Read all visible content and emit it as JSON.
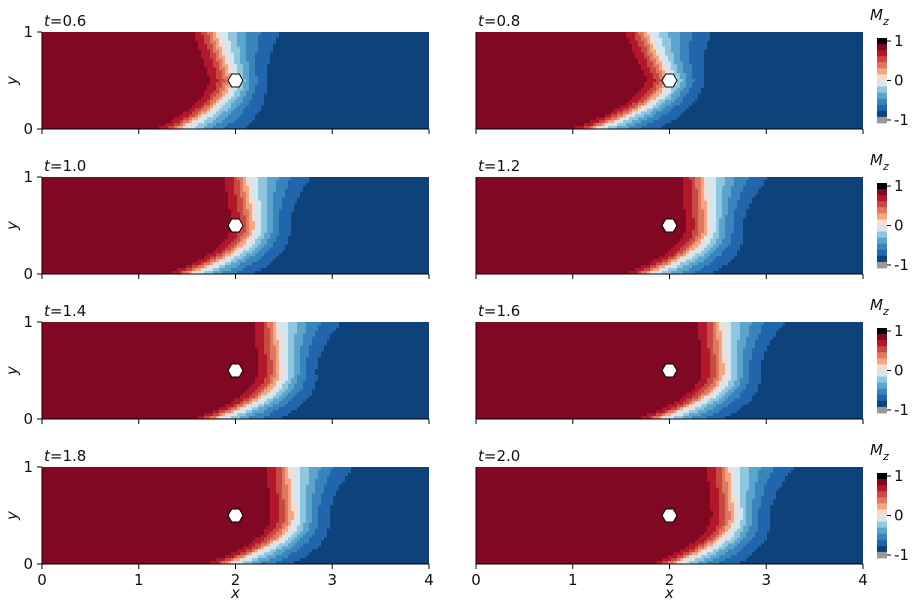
{
  "chart_data": {
    "type": "heatmap",
    "colormap": "RdBu_r",
    "xlabel": "x",
    "ylabel": "y",
    "xlim": [
      0,
      4
    ],
    "ylim": [
      0,
      1
    ],
    "x_ticks": [
      "0",
      "1",
      "2",
      "3",
      "4"
    ],
    "y_ticks": [
      "0",
      "1"
    ],
    "colorbar": {
      "label_main": "M",
      "label_sub": "z",
      "ticks": [
        "1",
        "0",
        "-1"
      ],
      "range": [
        -1,
        1
      ]
    },
    "obstacle": {
      "shape": "hexagon",
      "x": 2.0,
      "y": 0.5,
      "color": "#ffffff"
    },
    "panels": [
      {
        "t_prefix": "t",
        "t_value": "=0.6",
        "front_mid": 1.95,
        "front_wall": 1.8,
        "tail_top": 0.25,
        "tail_bottom": 0.35
      },
      {
        "t_prefix": "t",
        "t_value": "=0.8",
        "front_mid": 1.98,
        "front_wall": 1.75,
        "tail_top": 0.45,
        "tail_bottom": 0.5
      },
      {
        "t_prefix": "t",
        "t_value": "=1.0",
        "front_mid": 2.18,
        "front_wall": 2.1,
        "tail_top": 0.4,
        "tail_bottom": 0.55
      },
      {
        "t_prefix": "t",
        "t_value": "=1.2",
        "front_mid": 2.38,
        "front_wall": 2.35,
        "tail_top": 0.35,
        "tail_bottom": 0.55
      },
      {
        "t_prefix": "t",
        "t_value": "=1.4",
        "front_mid": 2.45,
        "front_wall": 2.42,
        "tail_top": 0.3,
        "tail_bottom": 0.6
      },
      {
        "t_prefix": "t",
        "t_value": "=1.6",
        "front_mid": 2.55,
        "front_wall": 2.52,
        "tail_top": 0.3,
        "tail_bottom": 0.6
      },
      {
        "t_prefix": "t",
        "t_value": "=1.8",
        "front_mid": 2.58,
        "front_wall": 2.55,
        "tail_top": 0.3,
        "tail_bottom": 0.6
      },
      {
        "t_prefix": "t",
        "t_value": "=2.0",
        "front_mid": 2.65,
        "front_wall": 2.62,
        "tail_top": 0.25,
        "tail_bottom": 0.55
      }
    ]
  }
}
